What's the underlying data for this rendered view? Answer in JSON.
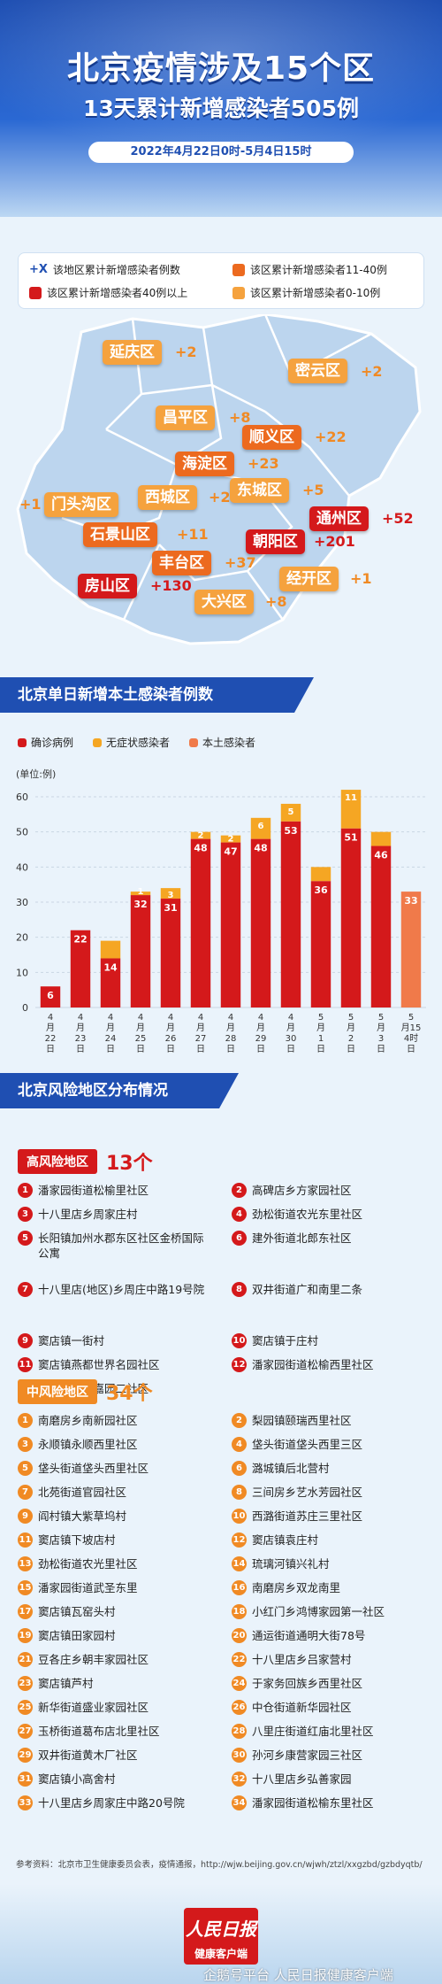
{
  "header": {
    "title": "北京疫情涉及15个区",
    "subtitle": "13天累计新增感染者505例",
    "date_range": "2022年4月22日0时-5月4日15时"
  },
  "legend": {
    "plus_symbol": "+X",
    "plus_text": "该地区累计新增感染者例数",
    "over40": "该区累计新增感染者40例以上",
    "range11_40": "该区累计新增感染者11-40例",
    "range0_10": "该区累计新增感染者0-10例",
    "colors": {
      "over40": "#d4191b",
      "range11_40": "#ec6a1f",
      "range0_10": "#f5a23e"
    }
  },
  "districts": [
    {
      "name": "延庆区",
      "count": "+2",
      "level": "low"
    },
    {
      "name": "密云区",
      "count": "+2",
      "level": "low"
    },
    {
      "name": "昌平区",
      "count": "+8",
      "level": "low"
    },
    {
      "name": "顺义区",
      "count": "+22",
      "level": "mid"
    },
    {
      "name": "海淀区",
      "count": "+23",
      "level": "mid"
    },
    {
      "name": "西城区",
      "count": "+2",
      "level": "low"
    },
    {
      "name": "东城区",
      "count": "+5",
      "level": "low"
    },
    {
      "name": "门头沟区",
      "count": "+1",
      "level": "low"
    },
    {
      "name": "石景山区",
      "count": "+11",
      "level": "mid"
    },
    {
      "name": "通州区",
      "count": "+52",
      "level": "high"
    },
    {
      "name": "朝阳区",
      "count": "+201",
      "level": "high"
    },
    {
      "name": "丰台区",
      "count": "+37",
      "level": "mid"
    },
    {
      "name": "房山区",
      "count": "+130",
      "level": "high"
    },
    {
      "name": "经开区",
      "count": "+1",
      "level": "low"
    },
    {
      "name": "大兴区",
      "count": "+8",
      "level": "low"
    }
  ],
  "chart_section_title": "北京单日新增本土感染者例数",
  "chart_data": {
    "type": "bar",
    "ylabel": "(单位:例)",
    "ylim": [
      0,
      60
    ],
    "yticks": [
      "0",
      "10",
      "20",
      "30",
      "40",
      "50",
      "60"
    ],
    "categories": [
      "4月22日",
      "4月23日",
      "4月24日",
      "4月25日",
      "4月26日",
      "4月27日",
      "4月28日",
      "4月29日",
      "4月30日",
      "5月1日",
      "5月2日",
      "5月3日",
      "5月4日15时"
    ],
    "category_labels": [
      [
        "4",
        "月",
        "22",
        "日"
      ],
      [
        "4",
        "月",
        "23",
        "日"
      ],
      [
        "4",
        "月",
        "24",
        "日"
      ],
      [
        "4",
        "月",
        "25",
        "日"
      ],
      [
        "4",
        "月",
        "26",
        "日"
      ],
      [
        "4",
        "月",
        "27",
        "日"
      ],
      [
        "4",
        "月",
        "28",
        "日"
      ],
      [
        "4",
        "月",
        "29",
        "日"
      ],
      [
        "4",
        "月",
        "30",
        "日"
      ],
      [
        "5",
        "月",
        "1",
        "日"
      ],
      [
        "5",
        "月",
        "2",
        "日"
      ],
      [
        "5",
        "月",
        "3",
        "日"
      ],
      [
        "5",
        "月15",
        "4时",
        "日"
      ]
    ],
    "series": [
      {
        "name": "确诊病例",
        "color": "#d4191b",
        "values": [
          6,
          22,
          14,
          32,
          31,
          48,
          47,
          48,
          53,
          36,
          51,
          46,
          null
        ],
        "labels": [
          "6",
          "22",
          "14",
          "32",
          "31",
          "48",
          "47",
          "48",
          "53",
          "36",
          "51",
          "46",
          ""
        ]
      },
      {
        "name": "无症状感染者",
        "color": "#f5a623",
        "values": [
          0,
          0,
          5,
          1,
          3,
          2,
          2,
          6,
          5,
          4,
          11,
          4,
          null
        ],
        "labels": [
          "",
          "",
          "",
          "1",
          "3",
          "2",
          "2",
          "6",
          "5",
          "",
          "11",
          "",
          ""
        ]
      },
      {
        "name": "本土感染者",
        "color": "#f07a4a",
        "values": [
          null,
          null,
          null,
          null,
          null,
          null,
          null,
          null,
          null,
          null,
          null,
          null,
          33
        ],
        "labels": [
          "",
          "",
          "",
          "",
          "",
          "",
          "",
          "",
          "",
          "",
          "",
          "",
          "33"
        ]
      }
    ]
  },
  "risk_section_title": "北京风险地区分布情况",
  "high_risk": {
    "label": "高风险地区",
    "count": "13个",
    "items": [
      "潘家园街道松榆里社区",
      "高碑店乡方家园社区",
      "十八里店乡周家庄村",
      "劲松街道农光东里社区",
      "长阳镇加州水郡东区社区金桥国际公寓",
      "建外街道北郎东社区",
      "十八里店(地区)乡周庄中路19号院",
      "双井街道广和南里二条",
      "窦店镇一街村",
      "窦店镇于庄村",
      "窦店镇燕都世界名园社区",
      "潘家园街道松榆西里社区",
      "金盏乡金盏嘉园二社区"
    ]
  },
  "mid_risk": {
    "label": "中风险地区",
    "count": "34个",
    "items": [
      "南磨房乡南新园社区",
      "梨园镇颐瑞西里社区",
      "永顺镇永顺西里社区",
      "垡头街道垡头西里三区",
      "垡头街道垡头西里社区",
      "潞城镇后北营村",
      "北苑街道官园社区",
      "三间房乡艺水芳园社区",
      "阎村镇大紫草坞村",
      "西潞街道苏庄三里社区",
      "窦店镇下坡店村",
      "窦店镇袁庄村",
      "劲松街道农光里社区",
      "琉璃河镇兴礼村",
      "潘家园街道武圣东里",
      "南磨房乡双龙南里",
      "窦店镇瓦窑头村",
      "小红门乡鸿博家园第一社区",
      "窦店镇田家园村",
      "通运街道通明大街78号",
      "豆各庄乡朝丰家园社区",
      "十八里店乡吕家营村",
      "窦店镇芦村",
      "于家务回族乡西里社区",
      "新华街道盛业家园社区",
      "中仓街道新华园社区",
      "玉桥街道葛布店北里社区",
      "八里庄街道红庙北里社区",
      "双井街道黄木厂社区",
      "孙河乡康营家园三社区",
      "窦店镇小高舍村",
      "十八里店乡弘善家园",
      "十八里店乡周家庄中路20号院",
      "潘家园街道松榆东里社区"
    ]
  },
  "source": "参考资料：北京市卫生健康委员会表，疫情通报，http://wjw.beijing.gov.cn/wjwh/ztzl/xxgzbd/gzbdyqtb/",
  "footer": {
    "logo_line1": "人民日报",
    "logo_line2": "健康客户端",
    "watermark": "企鹅号平台 人民日报健康客户端"
  }
}
